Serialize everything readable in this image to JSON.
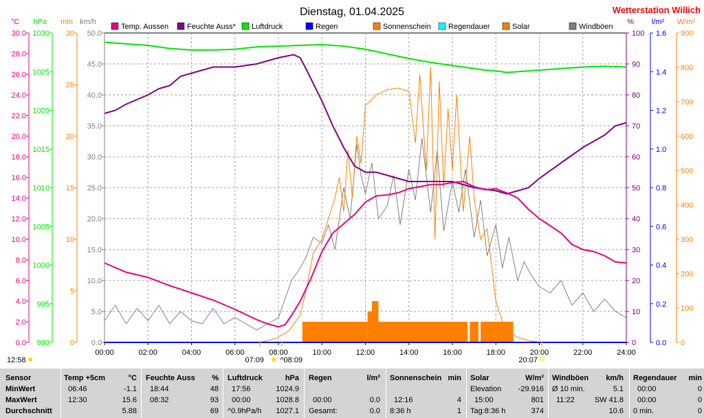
{
  "header": {
    "date": "Dienstag, 01.04.2025",
    "station": "Wetterstation Willich"
  },
  "colors": {
    "temp": "#e6007e",
    "humidity": "#800080",
    "pressure": "#00e600",
    "rain": "#0000ff",
    "sunshine": "#ff8000",
    "raindur": "#00ffff",
    "solar": "#ff8000",
    "gust": "#808080",
    "axis_speed": "#808080",
    "axis_rain": "#0000ff",
    "axis_solar": "#ff8000"
  },
  "axis_units": {
    "temp": "°C",
    "pressure": "hPa",
    "minutes": "min",
    "speed": "km/h",
    "humidity": "%",
    "rain": "l/m²",
    "solar": "W/m²"
  },
  "markers": {
    "sunrise": "07:09",
    "sunset": "20:07",
    "moonrise": "12:58",
    "moonset": "08:09"
  },
  "chart_data": {
    "type": "line",
    "x_ticks": [
      "00:00",
      "02:00",
      "04:00",
      "06:00",
      "08:00",
      "10:00",
      "12:00",
      "14:00",
      "16:00",
      "18:00",
      "20:00",
      "22:00",
      "24:00"
    ],
    "x_range_hours": [
      0,
      24
    ],
    "y_axes": {
      "temp": {
        "unit": "°C",
        "range": [
          0,
          30
        ],
        "ticks": [
          "0.0",
          "2.0",
          "4.0",
          "6.0",
          "8.0",
          "10.0",
          "12.0",
          "14.0",
          "16.0",
          "18.0",
          "20.0",
          "22.0",
          "24.0",
          "26.0",
          "28.0",
          "30.0"
        ]
      },
      "pressure": {
        "unit": "hPa",
        "range": [
          990,
          1030
        ],
        "ticks": [
          "990",
          "995",
          "1000",
          "1005",
          "1010",
          "1015",
          "1020",
          "1025",
          "1030"
        ]
      },
      "minutes": {
        "unit": "min",
        "range": [
          0,
          30
        ],
        "ticks": [
          "0",
          "5",
          "10",
          "15",
          "20",
          "25",
          "30"
        ]
      },
      "speed": {
        "unit": "km/h",
        "range": [
          0,
          50
        ],
        "ticks": [
          "0.0",
          "5.0",
          "10.0",
          "15.0",
          "20.0",
          "25.0",
          "30.0",
          "35.0",
          "40.0",
          "45.0",
          "50.0"
        ]
      },
      "humidity": {
        "unit": "%",
        "range": [
          0,
          100
        ],
        "ticks": [
          "0",
          "10",
          "20",
          "30",
          "40",
          "50",
          "60",
          "70",
          "80",
          "90",
          "100"
        ]
      },
      "rain": {
        "unit": "l/m²",
        "range": [
          0,
          1.6
        ],
        "ticks": [
          "0.0",
          "0.2",
          "0.4",
          "0.6",
          "0.8",
          "1.0",
          "1.2",
          "1.4",
          "1.6"
        ]
      },
      "solar": {
        "unit": "W/m²",
        "range": [
          0,
          900
        ],
        "ticks": [
          "0",
          "100",
          "200",
          "300",
          "400",
          "500",
          "600",
          "700",
          "800",
          "900"
        ]
      }
    },
    "series": [
      {
        "name": "Temp. Aussen",
        "axis": "temp",
        "points": [
          [
            0,
            7.7
          ],
          [
            1,
            6.8
          ],
          [
            2,
            6.3
          ],
          [
            3,
            5.5
          ],
          [
            4,
            4.8
          ],
          [
            5,
            4.1
          ],
          [
            6,
            3.2
          ],
          [
            7,
            2.2
          ],
          [
            7.5,
            1.8
          ],
          [
            8,
            1.5
          ],
          [
            8.3,
            1.7
          ],
          [
            8.6,
            2.6
          ],
          [
            9,
            4.0
          ],
          [
            9.5,
            6.2
          ],
          [
            10,
            8.8
          ],
          [
            10.5,
            10.6
          ],
          [
            11,
            11.5
          ],
          [
            11.5,
            12.4
          ],
          [
            12,
            13.6
          ],
          [
            12.5,
            14.2
          ],
          [
            13,
            14.3
          ],
          [
            13.5,
            14.5
          ],
          [
            14,
            14.9
          ],
          [
            14.5,
            15.1
          ],
          [
            15,
            15.3
          ],
          [
            15.5,
            15.3
          ],
          [
            16,
            15.5
          ],
          [
            16.5,
            15.6
          ],
          [
            17,
            15.1
          ],
          [
            17.5,
            14.8
          ],
          [
            18,
            14.9
          ],
          [
            18.5,
            14.5
          ],
          [
            19,
            14.0
          ],
          [
            19.5,
            12.9
          ],
          [
            20,
            12.0
          ],
          [
            21,
            10.6
          ],
          [
            21.5,
            9.5
          ],
          [
            22,
            9.0
          ],
          [
            22.5,
            8.8
          ],
          [
            23,
            8.4
          ],
          [
            23.5,
            7.8
          ],
          [
            24,
            7.7
          ]
        ]
      },
      {
        "name": "Feuchte Auss*",
        "axis": "humidity",
        "points": [
          [
            0,
            74
          ],
          [
            0.5,
            75
          ],
          [
            1,
            77
          ],
          [
            2,
            80
          ],
          [
            2.5,
            82
          ],
          [
            3,
            83
          ],
          [
            3.5,
            86
          ],
          [
            4,
            87
          ],
          [
            5,
            89
          ],
          [
            5.5,
            89
          ],
          [
            6,
            89
          ],
          [
            7,
            90
          ],
          [
            7.5,
            91
          ],
          [
            8,
            92
          ],
          [
            8.7,
            93
          ],
          [
            9,
            92
          ],
          [
            9.3,
            88
          ],
          [
            10,
            78
          ],
          [
            10.5,
            70
          ],
          [
            11,
            63
          ],
          [
            11.5,
            57
          ],
          [
            12,
            55
          ],
          [
            12.5,
            55
          ],
          [
            13,
            54
          ],
          [
            14,
            52
          ],
          [
            15,
            52
          ],
          [
            15.5,
            52
          ],
          [
            16,
            52
          ],
          [
            16.5,
            51
          ],
          [
            17,
            50
          ],
          [
            18,
            49
          ],
          [
            18.5,
            48
          ],
          [
            19,
            49
          ],
          [
            19.5,
            50
          ],
          [
            20,
            53
          ],
          [
            21,
            58
          ],
          [
            22,
            63
          ],
          [
            23,
            67
          ],
          [
            23.5,
            70
          ],
          [
            24,
            71
          ]
        ]
      },
      {
        "name": "Luftdruck",
        "axis": "pressure",
        "points": [
          [
            0,
            1028.8
          ],
          [
            1,
            1028.6
          ],
          [
            2,
            1028.4
          ],
          [
            3,
            1028.0
          ],
          [
            4,
            1027.8
          ],
          [
            5,
            1027.8
          ],
          [
            6,
            1027.9
          ],
          [
            7,
            1028.2
          ],
          [
            8,
            1028.3
          ],
          [
            9,
            1028.4
          ],
          [
            10,
            1028.5
          ],
          [
            11,
            1028.3
          ],
          [
            12,
            1027.9
          ],
          [
            13,
            1027.3
          ],
          [
            14,
            1026.7
          ],
          [
            15,
            1026.2
          ],
          [
            16,
            1025.8
          ],
          [
            17,
            1025.4
          ],
          [
            17.5,
            1025.2
          ],
          [
            18,
            1025.1
          ],
          [
            18.5,
            1024.9
          ],
          [
            19,
            1025.0
          ],
          [
            20,
            1025.2
          ],
          [
            21,
            1025.4
          ],
          [
            22,
            1025.6
          ],
          [
            23,
            1025.7
          ],
          [
            24,
            1025.6
          ]
        ]
      },
      {
        "name": "Regen",
        "axis": "rain",
        "points": [
          [
            0,
            0
          ],
          [
            24,
            0
          ]
        ]
      },
      {
        "name": "Sonnenschein",
        "axis": "minutes",
        "type": "bar",
        "blocks": [
          [
            9.1,
            12.1,
            2
          ],
          [
            12.1,
            12.3,
            3
          ],
          [
            12.3,
            12.6,
            4
          ],
          [
            12.6,
            16.7,
            2
          ],
          [
            16.8,
            17.2,
            2
          ],
          [
            17.3,
            18.8,
            2
          ]
        ]
      },
      {
        "name": "Regendauer",
        "axis": "minutes",
        "points": []
      },
      {
        "name": "Solar",
        "axis": "solar",
        "points": [
          [
            7.15,
            0
          ],
          [
            7.5,
            5
          ],
          [
            8,
            15
          ],
          [
            8.5,
            35
          ],
          [
            9,
            80
          ],
          [
            9.3,
            160
          ],
          [
            9.6,
            260
          ],
          [
            10,
            300
          ],
          [
            10.3,
            360
          ],
          [
            10.6,
            420
          ],
          [
            10.8,
            480
          ],
          [
            11,
            380
          ],
          [
            11.2,
            560
          ],
          [
            11.4,
            420
          ],
          [
            11.6,
            600
          ],
          [
            11.8,
            520
          ],
          [
            12,
            690
          ],
          [
            12.2,
            700
          ],
          [
            12.5,
            720
          ],
          [
            13,
            735
          ],
          [
            13.5,
            740
          ],
          [
            14,
            730
          ],
          [
            14.3,
            580
          ],
          [
            14.5,
            780
          ],
          [
            14.8,
            500
          ],
          [
            15,
            801
          ],
          [
            15.2,
            300
          ],
          [
            15.4,
            760
          ],
          [
            15.6,
            450
          ],
          [
            15.8,
            680
          ],
          [
            16,
            500
          ],
          [
            16.2,
            720
          ],
          [
            16.5,
            380
          ],
          [
            16.8,
            600
          ],
          [
            17,
            420
          ],
          [
            17.3,
            300
          ],
          [
            17.6,
            330
          ],
          [
            18,
            120
          ],
          [
            18.3,
            60
          ],
          [
            18.6,
            30
          ],
          [
            19,
            15
          ],
          [
            19.5,
            5
          ],
          [
            20.1,
            0
          ]
        ]
      },
      {
        "name": "Windböen",
        "axis": "speed",
        "points": [
          [
            0,
            3.5
          ],
          [
            0.5,
            6
          ],
          [
            1,
            3
          ],
          [
            1.5,
            5.5
          ],
          [
            2,
            3.5
          ],
          [
            2.5,
            6
          ],
          [
            3,
            3
          ],
          [
            3.5,
            5
          ],
          [
            4,
            3.5
          ],
          [
            4.5,
            3
          ],
          [
            5,
            5.5
          ],
          [
            5.5,
            3
          ],
          [
            6,
            4
          ],
          [
            6.5,
            3
          ],
          [
            7,
            2
          ],
          [
            7.5,
            3
          ],
          [
            8,
            4
          ],
          [
            8.3,
            7
          ],
          [
            8.6,
            10
          ],
          [
            9,
            12
          ],
          [
            9.3,
            14
          ],
          [
            9.6,
            17
          ],
          [
            10,
            16
          ],
          [
            10.3,
            19
          ],
          [
            10.6,
            15
          ],
          [
            11,
            25
          ],
          [
            11.3,
            20
          ],
          [
            11.6,
            32
          ],
          [
            11.8,
            27
          ],
          [
            12,
            24
          ],
          [
            12.3,
            29
          ],
          [
            12.6,
            20
          ],
          [
            13,
            22
          ],
          [
            13.3,
            27
          ],
          [
            13.6,
            19
          ],
          [
            14,
            28
          ],
          [
            14.3,
            23
          ],
          [
            14.6,
            33
          ],
          [
            15,
            21
          ],
          [
            15.3,
            31
          ],
          [
            15.6,
            18
          ],
          [
            16,
            26
          ],
          [
            16.3,
            21
          ],
          [
            16.6,
            28
          ],
          [
            17,
            17
          ],
          [
            17.3,
            23
          ],
          [
            17.6,
            14
          ],
          [
            18,
            19
          ],
          [
            18.3,
            12
          ],
          [
            18.6,
            17
          ],
          [
            19,
            10
          ],
          [
            19.3,
            13
          ],
          [
            19.6,
            11
          ],
          [
            20,
            9
          ],
          [
            20.5,
            8
          ],
          [
            21,
            10
          ],
          [
            21.5,
            6
          ],
          [
            22,
            8
          ],
          [
            22.5,
            5
          ],
          [
            23,
            7
          ],
          [
            23.5,
            5
          ],
          [
            24,
            4
          ]
        ]
      }
    ]
  },
  "stats": {
    "rows": [
      "Sensor",
      "MinWert",
      "MaxWert",
      "Durchschnitt"
    ],
    "temp": {
      "title": "Temp +5cm",
      "unit": "°C",
      "min_time": "06:46",
      "min_val": "-1.1",
      "max_time": "12:30",
      "max_val": "15.6",
      "avg_val": "5.88"
    },
    "feuchte": {
      "title": "Feuchte Auss",
      "unit": "%",
      "min_time": "18:44",
      "min_val": "48",
      "max_time": "08:32",
      "max_val": "93",
      "avg_val": "69"
    },
    "luftdruck": {
      "title": "Luftdruck",
      "unit": "hPa",
      "min_time": "17:56",
      "min_val": "1024.9",
      "max_time": "00:00",
      "max_val": "1028.8",
      "avg_label": "^0.9hPa/h",
      "avg_val": "1027.1"
    },
    "regen": {
      "title": "Regen",
      "unit": "l/m²",
      "max_time": "00:00",
      "max_val": "0.0",
      "avg_label": "Gesamt:",
      "avg_val": "0.0"
    },
    "sonne": {
      "title": "Sonnenschein",
      "unit": "min",
      "max_time": "12:16",
      "max_val": "4",
      "avg_label": "8:36 h",
      "avg_val": "1"
    },
    "solar": {
      "title": "Solar",
      "unit": "W/m²",
      "min_label": "Elevation",
      "min_val": "-29.916",
      "max_time": "15:00",
      "max_val": "801",
      "avg_label": "Tag:8:36 h",
      "avg_val": "374"
    },
    "wind": {
      "title": "Windböen",
      "unit": "km/h",
      "min_label": "Ø 10 min.",
      "min_val": "5.1",
      "max_time": "11:22",
      "max_val": "SW 41.8",
      "avg_val": "10.6"
    },
    "regendauer": {
      "title": "Regendauer",
      "unit": "min",
      "min_time": "00:00",
      "min_val": "0",
      "max_time": "00:00",
      "max_val": "0",
      "avg_label": "0 min.",
      "avg_val": "0"
    }
  }
}
